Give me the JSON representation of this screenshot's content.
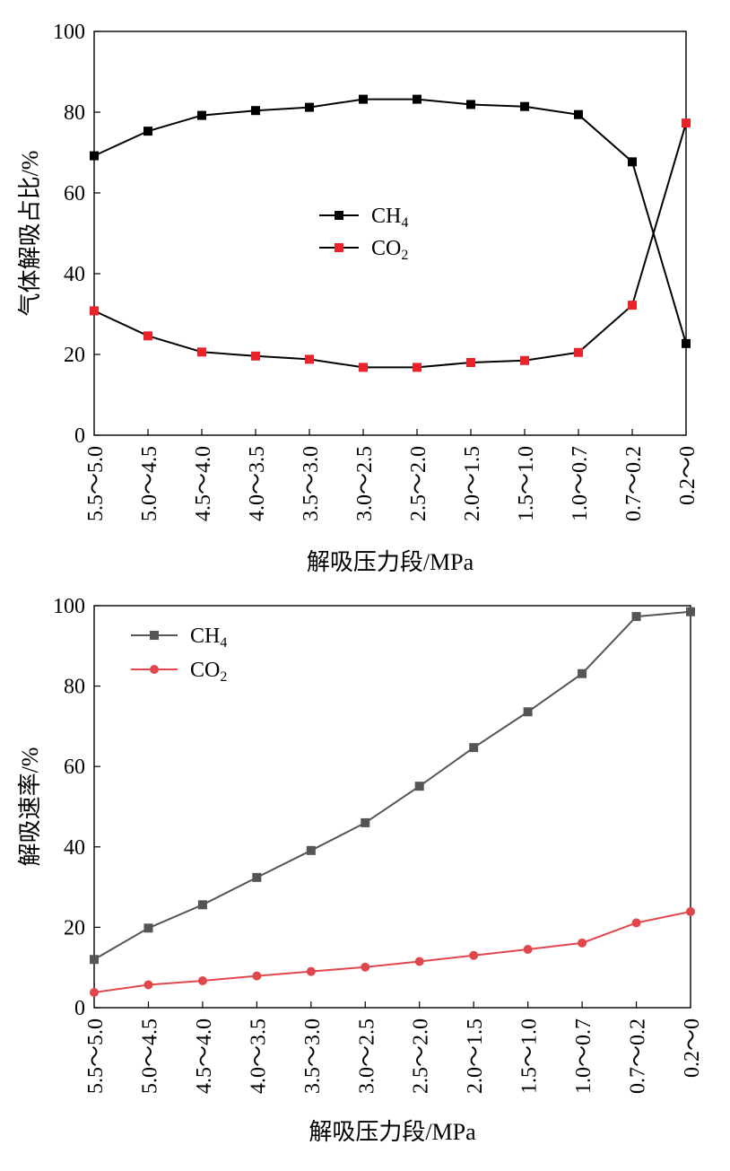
{
  "chart_data": [
    {
      "type": "line",
      "title": "",
      "xlabel": "解吸压力段/MPa",
      "ylabel": "气体解吸占比/%",
      "ylim": [
        0,
        100
      ],
      "yticks": [
        0,
        20,
        40,
        60,
        80,
        100
      ],
      "grid": false,
      "legend_position": "center",
      "categories": [
        "5.5～5.0",
        "5.0～4.5",
        "4.5～4.0",
        "4.0～3.5",
        "3.5～3.0",
        "3.0～2.5",
        "2.5～2.0",
        "2.0～1.5",
        "1.5～1.0",
        "1.0～0.7",
        "0.7～0.2",
        "0.2～0"
      ],
      "series": [
        {
          "name": "CH",
          "name_sub": "4",
          "color": "#000000",
          "marker": "square",
          "values": [
            69.2,
            75.3,
            79.2,
            80.4,
            81.2,
            83.2,
            83.2,
            81.9,
            81.4,
            79.4,
            67.7,
            22.7
          ]
        },
        {
          "name": "CO",
          "name_sub": "2",
          "color": "#000000",
          "marker_color": "#e8242a",
          "marker": "square",
          "values": [
            30.8,
            24.6,
            20.6,
            19.6,
            18.8,
            16.8,
            16.8,
            18.0,
            18.5,
            20.5,
            32.2,
            77.3
          ]
        }
      ]
    },
    {
      "type": "line",
      "title": "",
      "xlabel": "解吸压力段/MPa",
      "ylabel": "解吸速率/%",
      "ylim": [
        0,
        100
      ],
      "yticks": [
        0,
        20,
        40,
        60,
        80,
        100
      ],
      "grid": false,
      "legend_position": "top-left",
      "categories": [
        "5.5～5.0",
        "5.0～4.5",
        "4.5～4.0",
        "4.0～3.5",
        "3.5～3.0",
        "3.0～2.5",
        "2.5～2.0",
        "2.0～1.5",
        "1.5～1.0",
        "1.0～0.7",
        "0.7～0.2",
        "0.2～0"
      ],
      "series": [
        {
          "name": "CH",
          "name_sub": "4",
          "color": "#555555",
          "marker": "square",
          "values": [
            12.0,
            19.8,
            25.6,
            32.4,
            39.1,
            46.0,
            55.1,
            64.7,
            73.6,
            83.1,
            97.3,
            98.5
          ]
        },
        {
          "name": "CO",
          "name_sub": "2",
          "color": "#e0474c",
          "marker": "circle",
          "values": [
            3.8,
            5.7,
            6.7,
            7.9,
            9.0,
            10.1,
            11.5,
            13.0,
            14.5,
            16.1,
            21.1,
            23.9
          ]
        }
      ]
    }
  ]
}
